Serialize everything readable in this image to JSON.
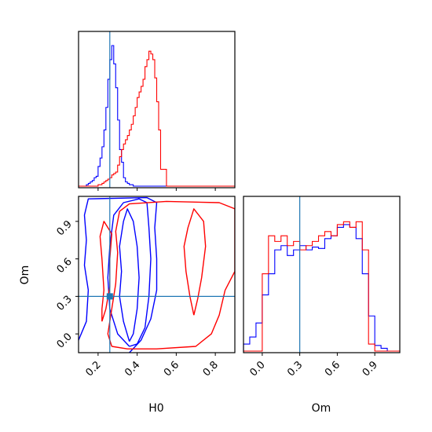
{
  "chart_data": [
    {
      "type": "histogram",
      "panel": "H0 marginal",
      "x": [
        0.1,
        0.11,
        0.12,
        0.13,
        0.14,
        0.15,
        0.16,
        0.17,
        0.18,
        0.19,
        0.2,
        0.21,
        0.22,
        0.23,
        0.24,
        0.25,
        0.26,
        0.27,
        0.28,
        0.29,
        0.3,
        0.31,
        0.32,
        0.33,
        0.34,
        0.35,
        0.36,
        0.37,
        0.38,
        0.39,
        0.4,
        0.41,
        0.42,
        0.43,
        0.44,
        0.45,
        0.46,
        0.47,
        0.48,
        0.49,
        0.5,
        0.51,
        0.52,
        0.53,
        0.54,
        0.55,
        0.56,
        0.57,
        0.58,
        0.59,
        0.6,
        0.61,
        0.62,
        0.63,
        0.64,
        0.65,
        0.66,
        0.67,
        0.68,
        0.69,
        0.7,
        0.71,
        0.72,
        0.73,
        0.74,
        0.75,
        0.76,
        0.77,
        0.78,
        0.79,
        0.8,
        0.81,
        0.82,
        0.83,
        0.84,
        0.85,
        0.86,
        0.87,
        0.88,
        0.89,
        0.9
      ],
      "xlim": [
        0.1,
        0.9
      ],
      "truth": 0.26,
      "series": [
        {
          "color": "#0000ff",
          "values": [
            0,
            0,
            0,
            0,
            0.01,
            0.02,
            0.03,
            0.04,
            0.06,
            0.07,
            0.14,
            0.2,
            0.28,
            0.4,
            0.56,
            0.76,
            0.9,
            1.0,
            0.87,
            0.7,
            0.47,
            0.26,
            0.17,
            0.06,
            0.03,
            0.02,
            0.01,
            0.01,
            0,
            0,
            0,
            0,
            0,
            0,
            0,
            0,
            0,
            0,
            0,
            0,
            0,
            0,
            0,
            0,
            0,
            0,
            0,
            0,
            0,
            0,
            0,
            0,
            0,
            0,
            0,
            0,
            0,
            0,
            0,
            0,
            0,
            0,
            0,
            0,
            0,
            0,
            0,
            0,
            0,
            0,
            0,
            0,
            0,
            0,
            0,
            0,
            0,
            0,
            0,
            0
          ]
        },
        {
          "color": "#ff0000",
          "values": [
            0,
            0,
            0,
            0,
            0,
            0,
            0,
            0,
            0,
            0,
            0.01,
            0.01,
            0.02,
            0.03,
            0.04,
            0.05,
            0.06,
            0.08,
            0.09,
            0.1,
            0.15,
            0.21,
            0.26,
            0.3,
            0.33,
            0.36,
            0.4,
            0.44,
            0.5,
            0.56,
            0.63,
            0.67,
            0.71,
            0.76,
            0.85,
            0.9,
            0.96,
            0.94,
            0.9,
            0.77,
            0.6,
            0.4,
            0.12,
            0.12,
            0.12,
            0,
            0,
            0,
            0,
            0,
            0,
            0,
            0,
            0,
            0,
            0,
            0,
            0,
            0,
            0,
            0,
            0,
            0,
            0,
            0,
            0,
            0,
            0,
            0,
            0,
            0,
            0,
            0,
            0,
            0,
            0,
            0,
            0,
            0,
            0
          ]
        }
      ],
      "xticks": [
        0.2,
        0.4,
        0.6,
        0.8
      ]
    },
    {
      "type": "contour",
      "panel": "H0 vs Om",
      "xlim": [
        0.1,
        0.9
      ],
      "ylim": [
        -0.15,
        1.1
      ],
      "ylabel": "Om",
      "xticks": [
        "0.2",
        "0.4",
        "0.6",
        "0.8"
      ],
      "yticks": [
        "0.0",
        "0.3",
        "0.6",
        "0.9"
      ],
      "truth": [
        0.26,
        0.3
      ],
      "series": [
        {
          "color": "#0000ff",
          "contours": [
            [
              [
                0.36,
                -0.06
              ],
              [
                0.33,
                0.1
              ],
              [
                0.31,
                0.3
              ],
              [
                0.32,
                0.5
              ],
              [
                0.31,
                0.7
              ],
              [
                0.33,
                0.9
              ],
              [
                0.35,
                1.0
              ],
              [
                0.38,
                0.9
              ],
              [
                0.4,
                0.7
              ],
              [
                0.41,
                0.45
              ],
              [
                0.4,
                0.2
              ],
              [
                0.38,
                0.0
              ],
              [
                0.36,
                -0.06
              ]
            ],
            [
              [
                0.36,
                -0.1
              ],
              [
                0.3,
                0.0
              ],
              [
                0.26,
                0.2
              ],
              [
                0.25,
                0.45
              ],
              [
                0.26,
                0.7
              ],
              [
                0.28,
                0.95
              ],
              [
                0.33,
                1.05
              ],
              [
                0.41,
                1.08
              ],
              [
                0.45,
                1.05
              ],
              [
                0.46,
                0.85
              ],
              [
                0.47,
                0.6
              ],
              [
                0.46,
                0.3
              ],
              [
                0.44,
                0.05
              ],
              [
                0.4,
                -0.08
              ],
              [
                0.36,
                -0.1
              ]
            ],
            [
              [
                0.1,
                -0.05
              ],
              [
                0.14,
                0.1
              ],
              [
                0.15,
                0.35
              ],
              [
                0.13,
                0.55
              ],
              [
                0.14,
                0.75
              ],
              [
                0.13,
                0.95
              ],
              [
                0.15,
                1.08
              ],
              [
                0.45,
                1.09
              ],
              [
                0.5,
                1.05
              ],
              [
                0.49,
                0.85
              ],
              [
                0.5,
                0.6
              ],
              [
                0.5,
                0.35
              ],
              [
                0.47,
                0.12
              ],
              [
                0.42,
                -0.05
              ],
              [
                0.36,
                -0.15
              ]
            ]
          ]
        },
        {
          "color": "#ff0000",
          "contours": [
            [
              [
                0.22,
                0.1
              ],
              [
                0.22,
                0.2
              ],
              [
                0.23,
                0.35
              ],
              [
                0.22,
                0.6
              ],
              [
                0.21,
                0.78
              ],
              [
                0.23,
                0.9
              ],
              [
                0.27,
                0.8
              ],
              [
                0.26,
                0.6
              ],
              [
                0.26,
                0.38
              ],
              [
                0.24,
                0.2
              ],
              [
                0.22,
                0.1
              ]
            ],
            [
              [
                0.69,
                0.15
              ],
              [
                0.67,
                0.3
              ],
              [
                0.65,
                0.5
              ],
              [
                0.64,
                0.7
              ],
              [
                0.66,
                0.85
              ],
              [
                0.69,
                1.0
              ],
              [
                0.74,
                0.9
              ],
              [
                0.75,
                0.7
              ],
              [
                0.73,
                0.45
              ],
              [
                0.71,
                0.28
              ],
              [
                0.69,
                0.15
              ]
            ],
            [
              [
                0.27,
                -0.1
              ],
              [
                0.25,
                0.0
              ],
              [
                0.27,
                0.2
              ],
              [
                0.29,
                0.4
              ],
              [
                0.3,
                0.65
              ],
              [
                0.29,
                0.82
              ],
              [
                0.31,
                0.98
              ],
              [
                0.36,
                1.04
              ],
              [
                0.55,
                1.06
              ],
              [
                0.82,
                1.05
              ],
              [
                0.9,
                1.0
              ],
              [
                0.9,
                0.7
              ],
              [
                0.9,
                0.5
              ],
              [
                0.85,
                0.35
              ],
              [
                0.82,
                0.15
              ],
              [
                0.78,
                0.0
              ],
              [
                0.7,
                -0.1
              ],
              [
                0.5,
                -0.12
              ],
              [
                0.35,
                -0.12
              ],
              [
                0.27,
                -0.1
              ]
            ]
          ]
        }
      ]
    },
    {
      "type": "histogram",
      "panel": "Om marginal",
      "x": [
        -0.15,
        -0.1,
        -0.05,
        0.0,
        0.05,
        0.1,
        0.15,
        0.2,
        0.25,
        0.3,
        0.35,
        0.4,
        0.45,
        0.5,
        0.55,
        0.6,
        0.65,
        0.7,
        0.75,
        0.8,
        0.85,
        0.9,
        0.95,
        1.0,
        1.05,
        1.1
      ],
      "xlim": [
        -0.15,
        1.1
      ],
      "truth": 0.3,
      "xlabel": "Om",
      "xticks": [
        "0.0",
        "0.3",
        "0.6",
        "0.9"
      ],
      "series": [
        {
          "color": "#0000ff",
          "values": [
            0.05,
            0.1,
            0.2,
            0.4,
            0.55,
            0.72,
            0.75,
            0.68,
            0.72,
            0.75,
            0.72,
            0.74,
            0.73,
            0.8,
            0.82,
            0.88,
            0.9,
            0.88,
            0.8,
            0.55,
            0.25,
            0.04,
            0.02,
            0,
            0
          ]
        },
        {
          "color": "#ff0000",
          "values": [
            0,
            0,
            0,
            0.55,
            0.82,
            0.78,
            0.82,
            0.75,
            0.78,
            0.72,
            0.75,
            0.78,
            0.82,
            0.85,
            0.82,
            0.9,
            0.92,
            0.88,
            0.92,
            0.72,
            0.05,
            0,
            0,
            0,
            0
          ]
        }
      ]
    }
  ],
  "colors": {
    "blue": "#0000ff",
    "red": "#ff0000",
    "truth": "#1f77b4"
  },
  "labels": {
    "h0": "H0",
    "om_y": "Om",
    "om_x": "Om"
  }
}
